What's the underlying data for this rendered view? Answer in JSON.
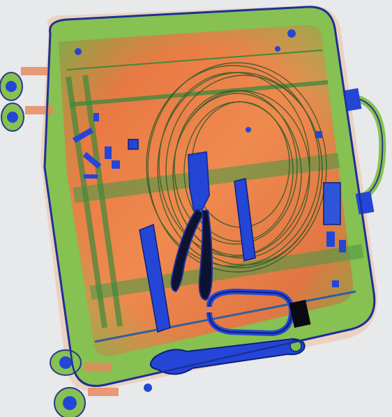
{
  "scan": {
    "background": "#e7e9ea",
    "palette": {
      "organic": "#ec7a43",
      "organic_dark": "#c85a2f",
      "mixed": "#7fbe4f",
      "mixed_dark": "#3e8a3a",
      "metal": "#2446d6",
      "metal_dark": "#0c1f7a",
      "dense": "#0a0a12"
    },
    "objects": [
      "suitcase-shell-icon",
      "wheel-icon",
      "telescopic-handle-icon",
      "carry-handle-icon",
      "coiled-cable-icon",
      "pliers-icon",
      "adjustable-wrench-icon",
      "carabiner-icon",
      "metal-bracket-icon",
      "small-parts-icon"
    ]
  }
}
